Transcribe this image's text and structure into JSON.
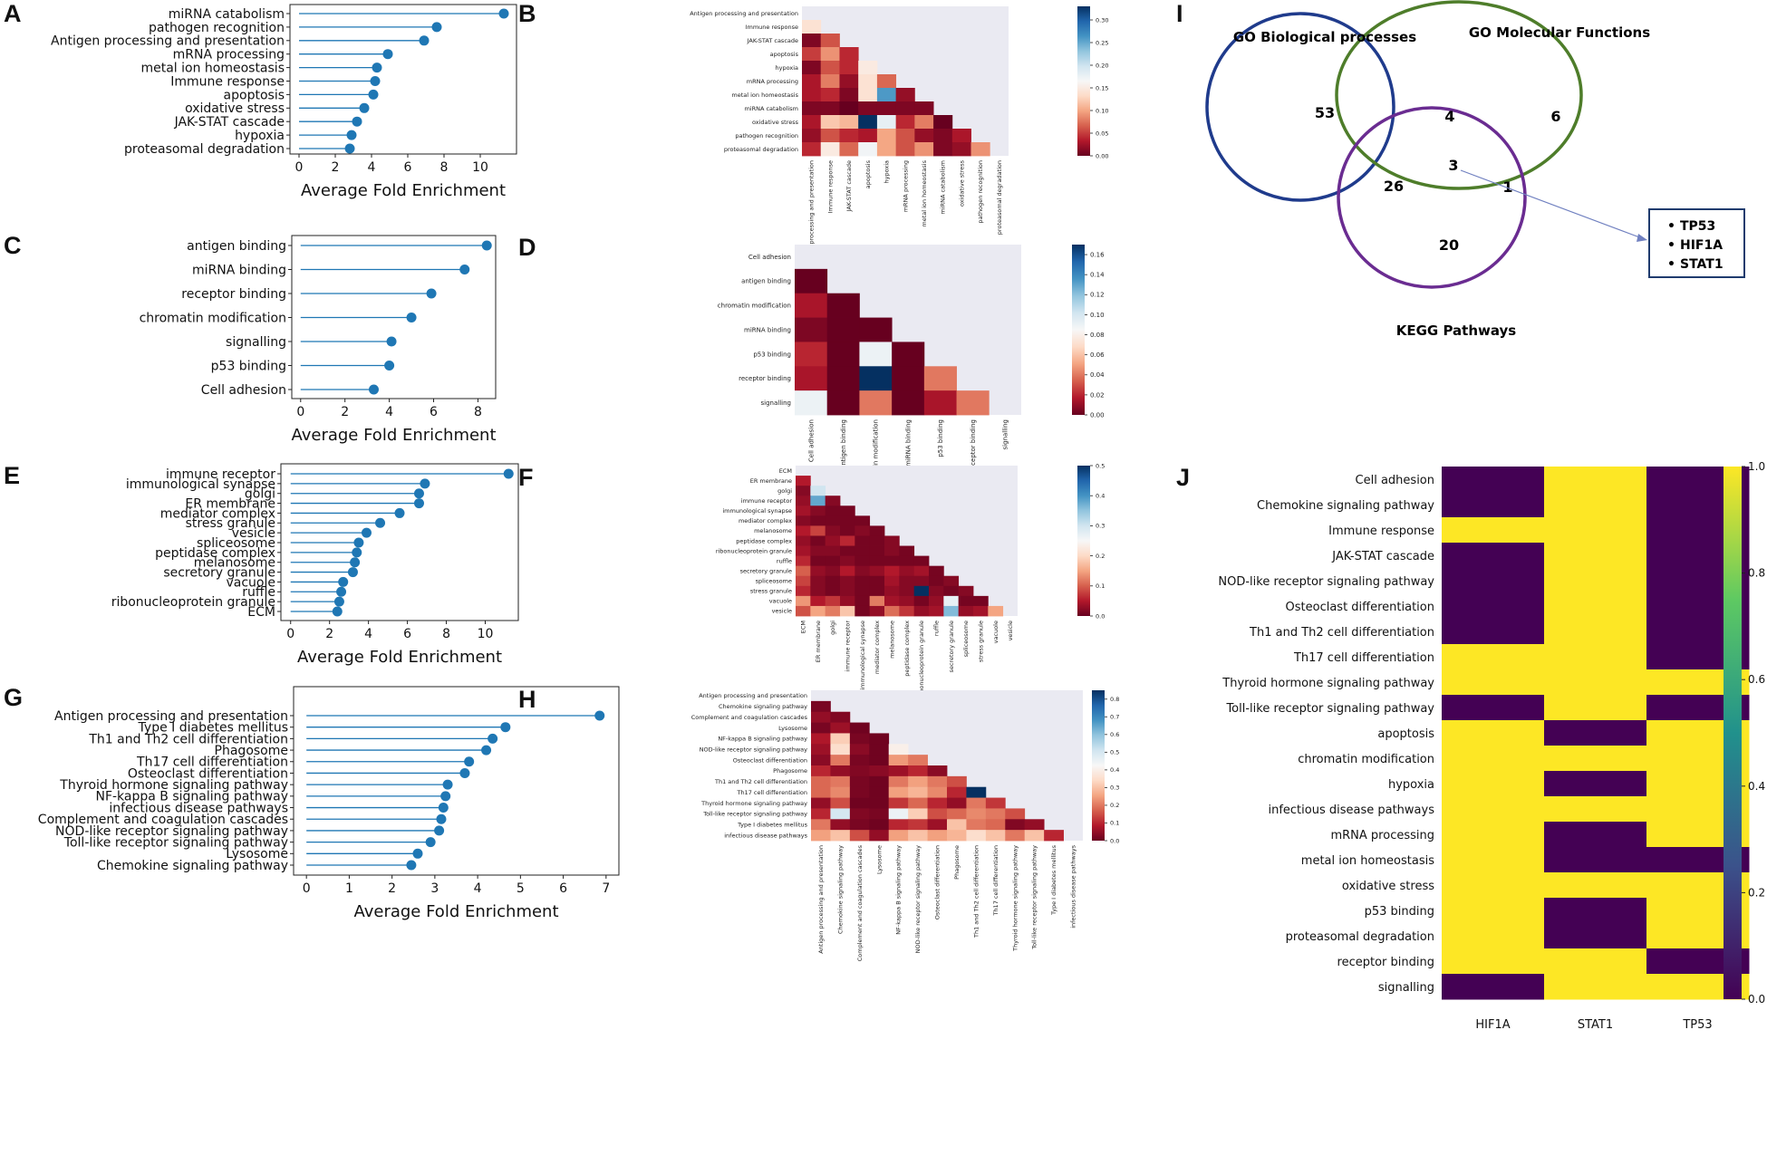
{
  "figure": {
    "panel_letters": [
      "A",
      "B",
      "C",
      "D",
      "E",
      "F",
      "G",
      "H",
      "I",
      "J"
    ]
  },
  "colors": {
    "lollipop": "#1f77b4",
    "rdbu": [
      "#67001f",
      "#b2182b",
      "#d6604d",
      "#f4a582",
      "#fddbc7",
      "#f7f7f7",
      "#d1e5f0",
      "#92c5de",
      "#4393c3",
      "#2166ac",
      "#053061"
    ],
    "viridis": [
      "#440154",
      "#3b528b",
      "#21918c",
      "#5ec962",
      "#fde725"
    ],
    "mask_bg": "#eaeaf2",
    "venn_bp": "#1f3b8c",
    "venn_mf": "#4e7d2a",
    "venn_kegg": "#6a2c91"
  },
  "chart_data": [
    {
      "id": "A",
      "type": "lollipop",
      "xlabel": "Average Fold Enrichment",
      "xticks": [
        0,
        2,
        4,
        6,
        8,
        10
      ],
      "xlim": [
        -0.5,
        12
      ],
      "categories": [
        "miRNA catabolism",
        "pathogen recognition",
        "Antigen processing and presentation",
        "mRNA processing",
        "metal ion homeostasis",
        "Immune response",
        "apoptosis",
        "oxidative stress",
        "JAK-STAT cascade",
        "hypoxia",
        "proteasomal degradation"
      ],
      "values": [
        11.3,
        7.6,
        6.9,
        4.9,
        4.3,
        4.2,
        4.1,
        3.6,
        3.2,
        2.9,
        2.8
      ]
    },
    {
      "id": "B",
      "type": "heatmap",
      "colormap": "RdBu",
      "vmin": 0,
      "vmax": 0.33,
      "cbar_ticks": [
        "0.00",
        "0.05",
        "0.10",
        "0.15",
        "0.20",
        "0.25",
        "0.30"
      ],
      "labels": [
        "Antigen processing and presentation",
        "Immune response",
        "JAK-STAT cascade",
        "apoptosis",
        "hypoxia",
        "mRNA processing",
        "metal ion homeostasis",
        "miRNA catabolism",
        "oxidative stress",
        "pathogen recognition",
        "proteasomal degradation"
      ],
      "values": [
        [],
        [
          0.14
        ],
        [
          0.01,
          0.06
        ],
        [
          0.05,
          0.09,
          0.04
        ],
        [
          0.01,
          0.06,
          0.04,
          0.15
        ],
        [
          0.03,
          0.08,
          0.02,
          0.14,
          0.07
        ],
        [
          0.03,
          0.04,
          0.01,
          0.14,
          0.26,
          0.02
        ],
        [
          0.01,
          0.01,
          0.0,
          0.01,
          0.01,
          0.01,
          0.01
        ],
        [
          0.03,
          0.12,
          0.11,
          0.33,
          0.18,
          0.04,
          0.08,
          0.0
        ],
        [
          0.02,
          0.06,
          0.04,
          0.03,
          0.1,
          0.06,
          0.02,
          0.01,
          0.03
        ],
        [
          0.04,
          0.15,
          0.07,
          0.17,
          0.1,
          0.06,
          0.09,
          0.01,
          0.02,
          0.09
        ]
      ]
    },
    {
      "id": "C",
      "type": "lollipop",
      "xlabel": "Average Fold Enrichment",
      "xticks": [
        0,
        2,
        4,
        6,
        8
      ],
      "xlim": [
        -0.4,
        8.8
      ],
      "categories": [
        "antigen binding",
        "miRNA binding",
        "receptor binding",
        "chromatin modification",
        "signalling",
        "p53 binding",
        "Cell adhesion"
      ],
      "values": [
        8.4,
        7.4,
        5.9,
        5.0,
        4.1,
        4.0,
        3.3
      ]
    },
    {
      "id": "D",
      "type": "heatmap",
      "colormap": "RdBu",
      "vmin": 0,
      "vmax": 0.17,
      "cbar_ticks": [
        "0.00",
        "0.02",
        "0.04",
        "0.06",
        "0.08",
        "0.10",
        "0.12",
        "0.14",
        "0.16"
      ],
      "labels": [
        "Cell adhesion",
        "antigen binding",
        "chromatin modification",
        "miRNA binding",
        "p53 binding",
        "receptor binding",
        "signalling"
      ],
      "values": [
        [],
        [
          0.0
        ],
        [
          0.015,
          0.0
        ],
        [
          0.005,
          0.0,
          0.0
        ],
        [
          0.02,
          0.0,
          0.09,
          0.0
        ],
        [
          0.015,
          0.0,
          0.17,
          0.0,
          0.04
        ],
        [
          0.09,
          0.0,
          0.04,
          0.0,
          0.015,
          0.04
        ]
      ]
    },
    {
      "id": "E",
      "type": "lollipop",
      "xlabel": "Average Fold Enrichment",
      "xticks": [
        0,
        2,
        4,
        6,
        8,
        10
      ],
      "xlim": [
        -0.5,
        11.7
      ],
      "categories": [
        "immune receptor",
        "immunological synapse",
        "golgi",
        "ER membrane",
        "mediator complex",
        "stress granule",
        "vesicle",
        "spliceosome",
        "peptidase complex",
        "melanosome",
        "secretory granule",
        "vacuole",
        "ruffle",
        "ribonucleoprotein granule",
        "ECM"
      ],
      "values": [
        11.2,
        6.9,
        6.6,
        6.6,
        5.6,
        4.6,
        3.9,
        3.5,
        3.4,
        3.3,
        3.2,
        2.7,
        2.6,
        2.5,
        2.4
      ]
    },
    {
      "id": "F",
      "type": "heatmap",
      "colormap": "RdBu",
      "vmin": 0,
      "vmax": 0.5,
      "cbar_ticks": [
        "0.0",
        "0.1",
        "0.2",
        "0.3",
        "0.4",
        "0.5"
      ],
      "labels": [
        "ECM",
        "ER membrane",
        "golgi",
        "immune receptor",
        "immunological synapse",
        "mediator complex",
        "melanosome",
        "peptidase complex",
        "ribonucleoprotein granule",
        "ruffle",
        "secretory granule",
        "spliceosome",
        "stress granule",
        "vacuole",
        "vesicle"
      ],
      "values": [
        [],
        [
          0.05
        ],
        [
          0.02,
          0.3
        ],
        [
          0.03,
          0.38,
          0.02
        ],
        [
          0.04,
          0.02,
          0.01,
          0.01
        ],
        [
          0.02,
          0.01,
          0.01,
          0.01,
          0.01
        ],
        [
          0.05,
          0.08,
          0.02,
          0.01,
          0.02,
          0.01
        ],
        [
          0.03,
          0.01,
          0.03,
          0.06,
          0.01,
          0.01,
          0.02
        ],
        [
          0.04,
          0.02,
          0.02,
          0.01,
          0.01,
          0.01,
          0.02,
          0.01
        ],
        [
          0.06,
          0.01,
          0.01,
          0.02,
          0.01,
          0.01,
          0.01,
          0.01,
          0.01
        ],
        [
          0.1,
          0.03,
          0.02,
          0.05,
          0.02,
          0.03,
          0.05,
          0.03,
          0.04,
          0.01
        ],
        [
          0.08,
          0.02,
          0.01,
          0.02,
          0.01,
          0.01,
          0.04,
          0.02,
          0.02,
          0.01,
          0.02
        ],
        [
          0.06,
          0.02,
          0.01,
          0.02,
          0.01,
          0.01,
          0.03,
          0.02,
          0.5,
          0.02,
          0.01,
          0.02
        ],
        [
          0.14,
          0.05,
          0.07,
          0.03,
          0.01,
          0.12,
          0.04,
          0.03,
          0.01,
          0.03,
          0.27,
          0.01,
          0.01
        ],
        [
          0.09,
          0.15,
          0.12,
          0.18,
          0.01,
          0.03,
          0.11,
          0.07,
          0.03,
          0.04,
          0.36,
          0.03,
          0.04,
          0.15
        ]
      ]
    },
    {
      "id": "G",
      "type": "lollipop",
      "xlabel": "Average Fold Enrichment",
      "xticks": [
        0,
        1,
        2,
        3,
        4,
        5,
        6,
        7
      ],
      "xlim": [
        -0.3,
        7.3
      ],
      "categories": [
        "Antigen processing and presentation",
        "Type I diabetes mellitus",
        "Th1 and Th2 cell differentiation",
        "Phagosome",
        "Th17 cell differentiation",
        "Osteoclast differentiation",
        "Thyroid hormone signaling pathway",
        "NF-kappa B signaling pathway",
        "infectious disease pathways",
        "Complement and coagulation cascades",
        "NOD-like receptor signaling pathway",
        "Toll-like receptor signaling pathway",
        "Lysosome",
        "Chemokine signaling pathway"
      ],
      "values": [
        6.85,
        4.65,
        4.35,
        4.2,
        3.8,
        3.7,
        3.3,
        3.25,
        3.2,
        3.15,
        3.1,
        2.9,
        2.6,
        2.45
      ]
    },
    {
      "id": "H",
      "type": "heatmap",
      "colormap": "RdBu",
      "vmin": 0,
      "vmax": 0.85,
      "cbar_ticks": [
        "0.0",
        "0.1",
        "0.2",
        "0.3",
        "0.4",
        "0.5",
        "0.6",
        "0.7",
        "0.8"
      ],
      "labels": [
        "Antigen processing and presentation",
        "Chemokine signaling pathway",
        "Complement and coagulation cascades",
        "Lysosome",
        "NF-kappa B signaling pathway",
        "NOD-like receptor signaling pathway",
        "Osteoclast differentiation",
        "Phagosome",
        "Th1 and Th2 cell differentiation",
        "Th17 cell differentiation",
        "Thyroid hormone signaling pathway",
        "Toll-like receptor signaling pathway",
        "Type I diabetes mellitus",
        "infectious disease pathways"
      ],
      "values": [
        [],
        [
          0.02
        ],
        [
          0.05,
          0.03
        ],
        [
          0.02,
          0.06,
          0.01
        ],
        [
          0.08,
          0.32,
          0.02,
          0.01
        ],
        [
          0.06,
          0.35,
          0.04,
          0.01,
          0.4
        ],
        [
          0.04,
          0.2,
          0.02,
          0.01,
          0.24,
          0.2
        ],
        [
          0.1,
          0.05,
          0.03,
          0.04,
          0.06,
          0.1,
          0.04
        ],
        [
          0.18,
          0.2,
          0.02,
          0.01,
          0.2,
          0.25,
          0.2,
          0.15
        ],
        [
          0.18,
          0.22,
          0.02,
          0.01,
          0.25,
          0.28,
          0.22,
          0.1,
          0.85
        ],
        [
          0.05,
          0.15,
          0.01,
          0.01,
          0.12,
          0.18,
          0.1,
          0.05,
          0.2,
          0.12
        ],
        [
          0.1,
          0.5,
          0.03,
          0.02,
          0.45,
          0.32,
          0.15,
          0.18,
          0.22,
          0.2,
          0.15
        ],
        [
          0.2,
          0.05,
          0.02,
          0.01,
          0.1,
          0.12,
          0.06,
          0.3,
          0.2,
          0.18,
          0.03,
          0.05
        ],
        [
          0.25,
          0.3,
          0.15,
          0.05,
          0.25,
          0.3,
          0.25,
          0.28,
          0.35,
          0.3,
          0.2,
          0.3,
          0.1
        ]
      ]
    },
    {
      "id": "I",
      "type": "venn",
      "sets": [
        "GO Biological processes",
        "GO Molecular Functions",
        "KEGG Pathways"
      ],
      "regions": {
        "bp_only": "53",
        "mf_only": "6",
        "kegg_only": "20",
        "bp_mf": "4",
        "bp_kegg": "26",
        "mf_kegg": "1",
        "all": "3"
      },
      "genes": [
        "TP53",
        "HIF1A",
        "STAT1"
      ]
    },
    {
      "id": "J",
      "type": "heatmap",
      "colormap": "viridis",
      "vmin": 0,
      "vmax": 1,
      "cbar_ticks": [
        "0.0",
        "0.2",
        "0.4",
        "0.6",
        "0.8",
        "1.0"
      ],
      "columns": [
        "HIF1A",
        "STAT1",
        "TP53"
      ],
      "rows": [
        "Cell adhesion",
        "Chemokine signaling pathway",
        "Immune response",
        "JAK-STAT cascade",
        "NOD-like receptor signaling pathway",
        "Osteoclast differentiation",
        "Th1 and Th2 cell differentiation",
        "Th17 cell differentiation",
        "Thyroid hormone signaling pathway",
        "Toll-like receptor signaling pathway",
        "apoptosis",
        "chromatin modification",
        "hypoxia",
        "infectious disease pathways",
        "mRNA processing",
        "metal ion homeostasis",
        "oxidative stress",
        "p53 binding",
        "proteasomal degradation",
        "receptor binding",
        "signalling"
      ],
      "values": [
        [
          0,
          1,
          0
        ],
        [
          0,
          1,
          0
        ],
        [
          1,
          1,
          0
        ],
        [
          0,
          1,
          0
        ],
        [
          0,
          1,
          0
        ],
        [
          0,
          1,
          0
        ],
        [
          0,
          1,
          0
        ],
        [
          1,
          1,
          0
        ],
        [
          1,
          1,
          1
        ],
        [
          0,
          1,
          0
        ],
        [
          1,
          0,
          1
        ],
        [
          1,
          1,
          1
        ],
        [
          1,
          0,
          1
        ],
        [
          1,
          1,
          1
        ],
        [
          1,
          0,
          1
        ],
        [
          1,
          0,
          0
        ],
        [
          1,
          1,
          1
        ],
        [
          1,
          0,
          1
        ],
        [
          1,
          0,
          1
        ],
        [
          1,
          1,
          0
        ],
        [
          0,
          1,
          1
        ]
      ]
    }
  ]
}
